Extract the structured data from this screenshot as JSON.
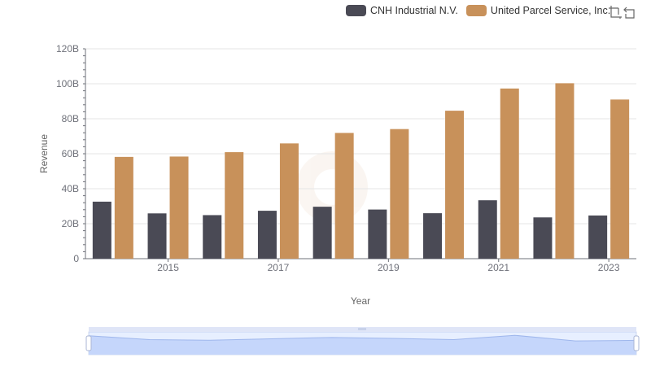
{
  "legend": {
    "items": [
      {
        "label": "CNH Industrial N.V.",
        "color": "#4a4a55"
      },
      {
        "label": "United Parcel Service, Inc.",
        "color": "#c8915a"
      }
    ]
  },
  "toolbox": {
    "icons": [
      "zoom-icon",
      "restore-icon"
    ]
  },
  "chart_data": {
    "type": "bar",
    "x": [
      2014,
      2015,
      2016,
      2017,
      2018,
      2019,
      2020,
      2021,
      2022,
      2023
    ],
    "x_ticks": [
      "2015",
      "2017",
      "2019",
      "2021",
      "2023"
    ],
    "series": [
      {
        "name": "CNH Industrial N.V.",
        "color": "#4a4a55",
        "values": [
          32.6,
          25.9,
          24.9,
          27.4,
          29.7,
          28.1,
          26.0,
          33.4,
          23.6,
          24.7
        ]
      },
      {
        "name": "United Parcel Service, Inc.",
        "color": "#c8915a",
        "values": [
          58.2,
          58.4,
          60.9,
          65.9,
          71.9,
          74.1,
          84.6,
          97.3,
          100.3,
          91.0
        ]
      }
    ],
    "xlabel": "Year",
    "ylabel": "Revenue",
    "ylim": [
      0,
      120
    ],
    "y_ticks": [
      "0",
      "20B",
      "40B",
      "60B",
      "80B",
      "100B",
      "120B"
    ],
    "grid": true
  },
  "zoom_slider": {
    "range_percent": [
      0,
      100
    ]
  }
}
